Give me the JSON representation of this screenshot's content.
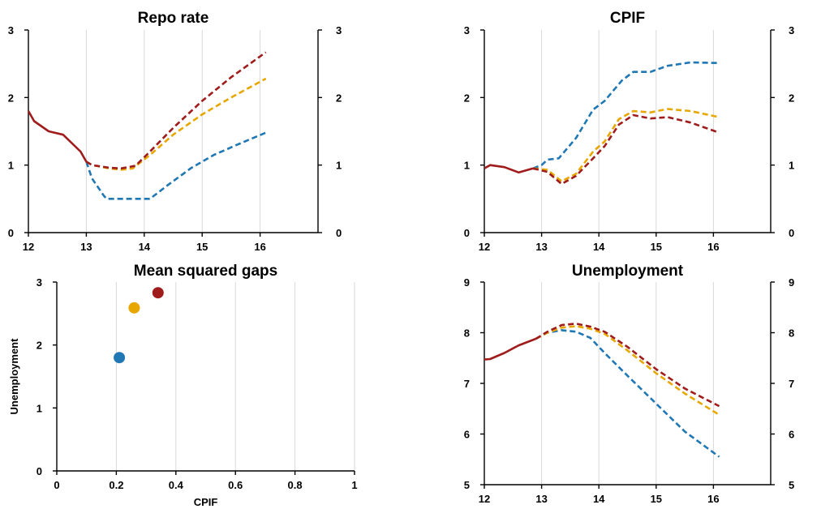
{
  "colors": {
    "blue": "#1f77b4",
    "yellow": "#e8a700",
    "red": "#a01c1c"
  },
  "chart_data": [
    {
      "id": "repo",
      "type": "line",
      "title": "Repo rate",
      "xlim": [
        12,
        17
      ],
      "ylim": [
        0,
        3
      ],
      "x_ticks": [
        "12",
        "13",
        "14",
        "15",
        "16"
      ],
      "y_ticks": [
        "0",
        "1",
        "2",
        "3"
      ],
      "right_ticks": [
        "0",
        "1",
        "2",
        "3"
      ],
      "grid": true,
      "series": [
        {
          "color": "blue",
          "dashed": true,
          "points": [
            [
              13.0,
              1.05
            ],
            [
              13.1,
              0.8
            ],
            [
              13.3,
              0.55
            ],
            [
              13.35,
              0.5
            ],
            [
              13.6,
              0.5
            ],
            [
              13.8,
              0.5
            ],
            [
              14.1,
              0.5
            ],
            [
              14.4,
              0.7
            ],
            [
              14.8,
              0.95
            ],
            [
              15.2,
              1.15
            ],
            [
              15.6,
              1.3
            ],
            [
              16.1,
              1.48
            ]
          ]
        },
        {
          "color": "yellow",
          "dashed": true,
          "points": [
            [
              13.0,
              1.05
            ],
            [
              13.1,
              1.0
            ],
            [
              13.4,
              0.95
            ],
            [
              13.6,
              0.93
            ],
            [
              13.8,
              0.95
            ],
            [
              14.1,
              1.15
            ],
            [
              14.5,
              1.45
            ],
            [
              15.0,
              1.75
            ],
            [
              15.5,
              2.0
            ],
            [
              16.1,
              2.28
            ]
          ]
        },
        {
          "color": "red",
          "dashed": true,
          "points": [
            [
              13.0,
              1.05
            ],
            [
              13.1,
              1.0
            ],
            [
              13.4,
              0.96
            ],
            [
              13.6,
              0.95
            ],
            [
              13.85,
              0.99
            ],
            [
              14.1,
              1.2
            ],
            [
              14.5,
              1.55
            ],
            [
              15.0,
              1.95
            ],
            [
              15.5,
              2.3
            ],
            [
              16.1,
              2.67
            ]
          ]
        },
        {
          "color": "red",
          "dashed": false,
          "points": [
            [
              12.0,
              1.8
            ],
            [
              12.1,
              1.65
            ],
            [
              12.35,
              1.5
            ],
            [
              12.6,
              1.45
            ],
            [
              12.9,
              1.2
            ],
            [
              13.0,
              1.05
            ]
          ]
        }
      ]
    },
    {
      "id": "cpif",
      "type": "line",
      "title": "CPIF",
      "xlim": [
        12,
        17
      ],
      "ylim": [
        0,
        3
      ],
      "x_ticks": [
        "12",
        "13",
        "14",
        "15",
        "16"
      ],
      "y_ticks": [
        "0",
        "1",
        "2",
        "3"
      ],
      "right_ticks": [
        "0",
        "1",
        "2",
        "3"
      ],
      "grid": true,
      "series": [
        {
          "color": "blue",
          "dashed": true,
          "points": [
            [
              12.85,
              0.95
            ],
            [
              13.0,
              1.0
            ],
            [
              13.1,
              1.08
            ],
            [
              13.3,
              1.1
            ],
            [
              13.6,
              1.4
            ],
            [
              13.9,
              1.82
            ],
            [
              14.1,
              1.95
            ],
            [
              14.4,
              2.25
            ],
            [
              14.6,
              2.38
            ],
            [
              14.9,
              2.38
            ],
            [
              15.2,
              2.47
            ],
            [
              15.6,
              2.52
            ],
            [
              16.1,
              2.51
            ]
          ]
        },
        {
          "color": "yellow",
          "dashed": true,
          "points": [
            [
              12.85,
              0.95
            ],
            [
              13.1,
              0.93
            ],
            [
              13.35,
              0.76
            ],
            [
              13.6,
              0.87
            ],
            [
              13.9,
              1.2
            ],
            [
              14.1,
              1.35
            ],
            [
              14.35,
              1.68
            ],
            [
              14.6,
              1.8
            ],
            [
              14.9,
              1.78
            ],
            [
              15.2,
              1.83
            ],
            [
              15.6,
              1.8
            ],
            [
              16.1,
              1.71
            ]
          ]
        },
        {
          "color": "red",
          "dashed": true,
          "points": [
            [
              12.85,
              0.95
            ],
            [
              13.1,
              0.9
            ],
            [
              13.35,
              0.72
            ],
            [
              13.6,
              0.84
            ],
            [
              13.9,
              1.1
            ],
            [
              14.1,
              1.28
            ],
            [
              14.35,
              1.6
            ],
            [
              14.6,
              1.74
            ],
            [
              14.9,
              1.69
            ],
            [
              15.2,
              1.71
            ],
            [
              15.6,
              1.63
            ],
            [
              16.1,
              1.48
            ]
          ]
        },
        {
          "color": "red",
          "dashed": false,
          "points": [
            [
              12.0,
              0.95
            ],
            [
              12.1,
              1.0
            ],
            [
              12.35,
              0.97
            ],
            [
              12.6,
              0.89
            ],
            [
              12.85,
              0.95
            ]
          ]
        }
      ]
    },
    {
      "id": "msg",
      "type": "scatter",
      "title": "Mean squared gaps",
      "xlabel": "CPIF",
      "ylabel": "Unemployment",
      "xlim": [
        0,
        1
      ],
      "ylim": [
        0,
        3
      ],
      "x_ticks": [
        "0",
        "0.2",
        "0.4",
        "0.6",
        "0.8",
        "1"
      ],
      "y_ticks": [
        "0",
        "1",
        "2",
        "3"
      ],
      "grid": true,
      "points": [
        {
          "x": 0.21,
          "y": 1.8,
          "color": "blue"
        },
        {
          "x": 0.26,
          "y": 2.59,
          "color": "yellow"
        },
        {
          "x": 0.34,
          "y": 2.83,
          "color": "red"
        }
      ]
    },
    {
      "id": "unemp",
      "type": "line",
      "title": "Unemployment",
      "xlim": [
        12,
        17
      ],
      "ylim": [
        5,
        9
      ],
      "x_ticks": [
        "12",
        "13",
        "14",
        "15",
        "16"
      ],
      "y_ticks": [
        "5",
        "6",
        "7",
        "8",
        "9"
      ],
      "right_ticks": [
        "5",
        "6",
        "7",
        "8",
        "9"
      ],
      "grid": true,
      "series": [
        {
          "color": "blue",
          "dashed": true,
          "points": [
            [
              12.9,
              7.88
            ],
            [
              13.1,
              8.0
            ],
            [
              13.35,
              8.05
            ],
            [
              13.6,
              8.02
            ],
            [
              13.85,
              7.9
            ],
            [
              14.1,
              7.6
            ],
            [
              14.5,
              7.15
            ],
            [
              15.0,
              6.6
            ],
            [
              15.5,
              6.05
            ],
            [
              16.1,
              5.55
            ]
          ]
        },
        {
          "color": "yellow",
          "dashed": true,
          "points": [
            [
              12.9,
              7.88
            ],
            [
              13.1,
              8.0
            ],
            [
              13.35,
              8.1
            ],
            [
              13.6,
              8.13
            ],
            [
              13.85,
              8.08
            ],
            [
              14.1,
              7.98
            ],
            [
              14.5,
              7.65
            ],
            [
              15.0,
              7.2
            ],
            [
              15.5,
              6.8
            ],
            [
              16.1,
              6.38
            ]
          ]
        },
        {
          "color": "red",
          "dashed": true,
          "points": [
            [
              12.9,
              7.88
            ],
            [
              13.1,
              8.02
            ],
            [
              13.35,
              8.15
            ],
            [
              13.6,
              8.18
            ],
            [
              13.85,
              8.12
            ],
            [
              14.1,
              8.02
            ],
            [
              14.5,
              7.72
            ],
            [
              15.0,
              7.28
            ],
            [
              15.5,
              6.9
            ],
            [
              16.1,
              6.55
            ]
          ]
        },
        {
          "color": "red",
          "dashed": false,
          "points": [
            [
              12.0,
              7.47
            ],
            [
              12.1,
              7.48
            ],
            [
              12.35,
              7.6
            ],
            [
              12.6,
              7.75
            ],
            [
              12.9,
              7.88
            ]
          ]
        }
      ]
    }
  ]
}
